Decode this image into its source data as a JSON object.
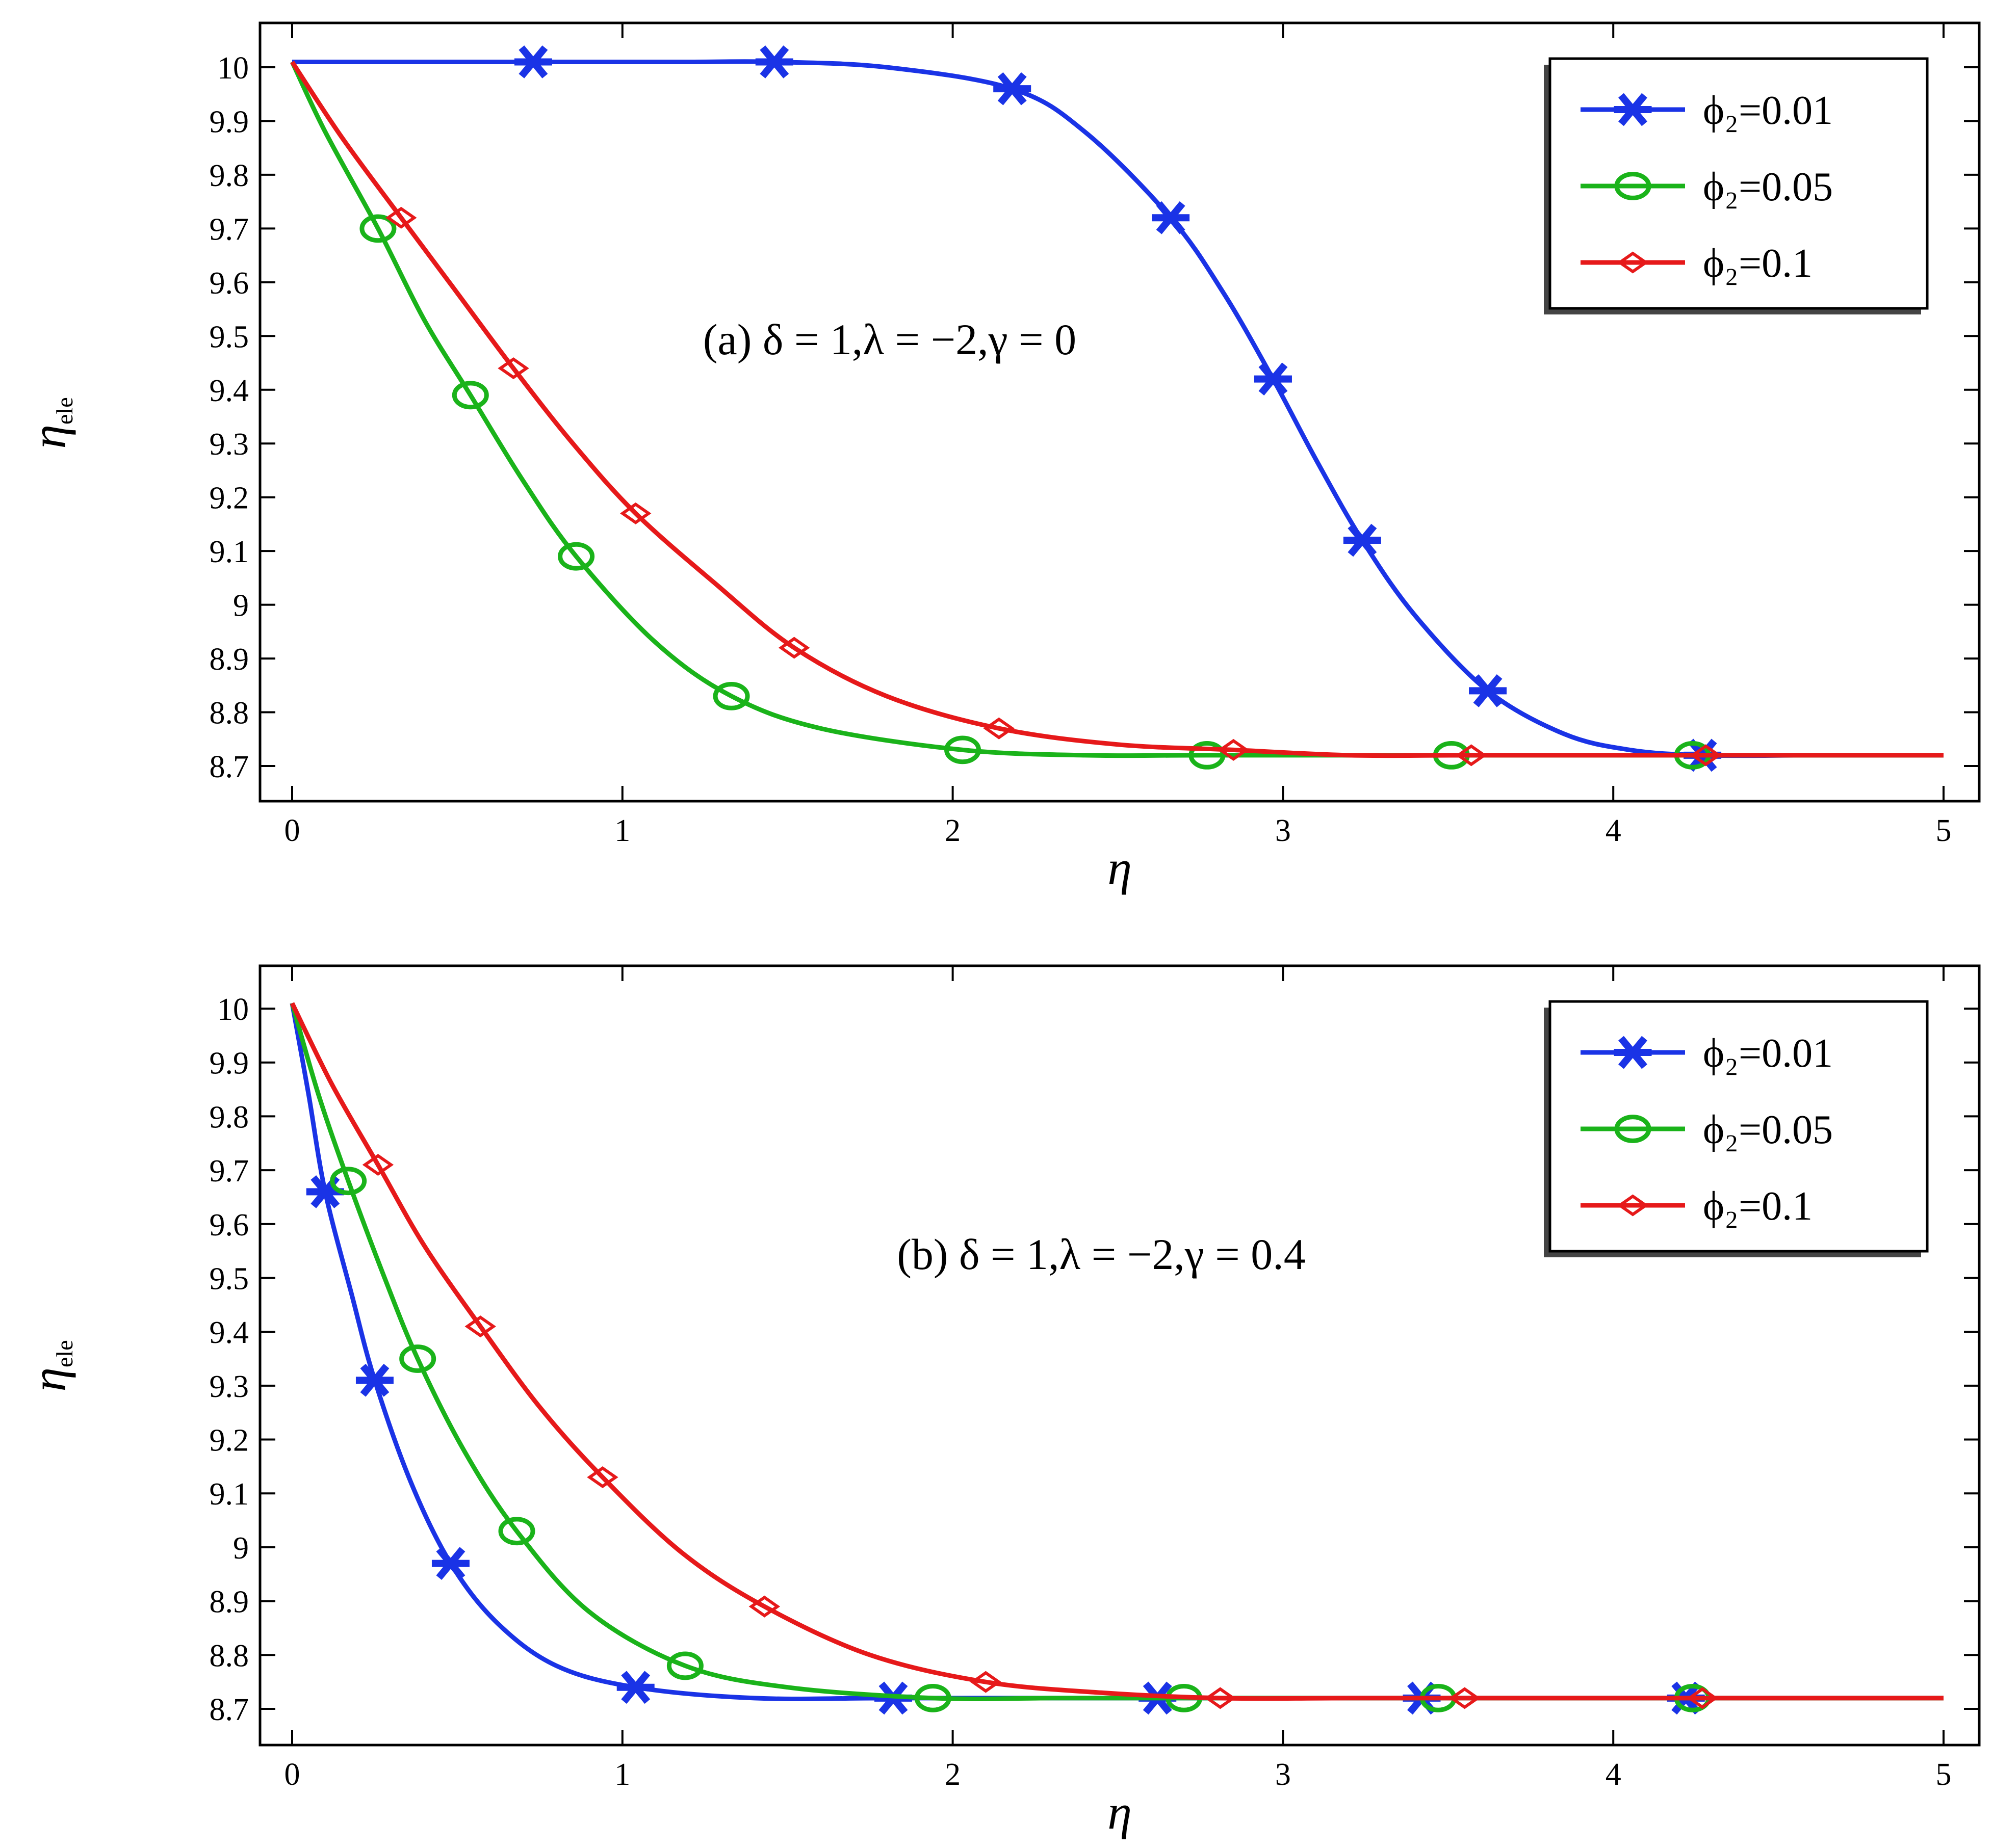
{
  "chart_data": [
    {
      "type": "line",
      "annotation": "(a) δ = 1,λ = −2,γ = 0",
      "xlabel": "η",
      "ylabel": "η",
      "ylabel_sub": "ele",
      "xlim": [
        0,
        5
      ],
      "ylim": [
        8.66,
        10.1
      ],
      "xticks": [
        0,
        1,
        2,
        3,
        4,
        5
      ],
      "yticks": [
        8.7,
        8.8,
        8.9,
        9,
        9.1,
        9.2,
        9.3,
        9.4,
        9.5,
        9.6,
        9.7,
        9.8,
        9.9,
        10
      ],
      "legend_position": "top-right",
      "grid": false,
      "series": [
        {
          "name": "ϕ₂=0.01",
          "color": "#1a33e6",
          "marker": "star",
          "x": [
            0,
            0.3,
            0.73,
            1.2,
            1.46,
            1.8,
            2.18,
            2.4,
            2.66,
            2.82,
            2.97,
            3.1,
            3.24,
            3.4,
            3.62,
            3.85,
            4.05,
            4.27,
            4.6,
            5
          ],
          "y": [
            10.01,
            10.01,
            10.01,
            10.01,
            10.01,
            10.0,
            9.96,
            9.88,
            9.72,
            9.58,
            9.42,
            9.27,
            9.12,
            8.98,
            8.84,
            8.76,
            8.73,
            8.72,
            8.72,
            8.72
          ],
          "markers_x": [
            0.73,
            1.46,
            2.18,
            2.66,
            2.97,
            3.24,
            3.62,
            4.27
          ],
          "markers_y": [
            10.01,
            10.01,
            9.96,
            9.72,
            9.42,
            9.12,
            8.84,
            8.72
          ]
        },
        {
          "name": "ϕ₂=0.05",
          "color": "#1ab31a",
          "marker": "circle",
          "x": [
            0,
            0.1,
            0.26,
            0.4,
            0.54,
            0.7,
            0.86,
            1.1,
            1.33,
            1.6,
            2.03,
            2.4,
            2.77,
            3.51,
            4.24,
            5
          ],
          "y": [
            10.01,
            9.88,
            9.7,
            9.53,
            9.39,
            9.23,
            9.09,
            8.93,
            8.83,
            8.77,
            8.73,
            8.72,
            8.72,
            8.72,
            8.72,
            8.72
          ],
          "markers_x": [
            0.26,
            0.54,
            0.86,
            1.33,
            2.03,
            2.77,
            3.51,
            4.24
          ],
          "markers_y": [
            9.7,
            9.39,
            9.09,
            8.83,
            8.73,
            8.72,
            8.72,
            8.72
          ]
        },
        {
          "name": "ϕ₂=0.1",
          "color": "#e6191a",
          "marker": "diamond",
          "x": [
            0,
            0.15,
            0.33,
            0.5,
            0.67,
            0.85,
            1.04,
            1.28,
            1.52,
            1.8,
            2.14,
            2.5,
            2.85,
            3.2,
            3.57,
            4.28,
            5
          ],
          "y": [
            10.01,
            9.87,
            9.72,
            9.58,
            9.44,
            9.3,
            9.17,
            9.04,
            8.92,
            8.83,
            8.77,
            8.74,
            8.73,
            8.72,
            8.72,
            8.72,
            8.72
          ],
          "markers_x": [
            0.33,
            0.67,
            1.04,
            1.52,
            2.14,
            2.85,
            3.57,
            4.28
          ],
          "markers_y": [
            9.72,
            9.44,
            9.17,
            8.92,
            8.77,
            8.73,
            8.72,
            8.72
          ]
        }
      ]
    },
    {
      "type": "line",
      "annotation": "(b) δ = 1,λ = −2,γ = 0.4",
      "xlabel": "η",
      "ylabel": "η",
      "ylabel_sub": "ele",
      "xlim": [
        0,
        5
      ],
      "ylim": [
        8.66,
        10.1
      ],
      "xticks": [
        0,
        1,
        2,
        3,
        4,
        5
      ],
      "yticks": [
        8.7,
        8.8,
        8.9,
        9,
        9.1,
        9.2,
        9.3,
        9.4,
        9.5,
        9.6,
        9.7,
        9.8,
        9.9,
        10
      ],
      "legend_position": "top-right",
      "grid": false,
      "series": [
        {
          "name": "ϕ₂=0.01",
          "color": "#1a33e6",
          "marker": "star",
          "x": [
            0,
            0.05,
            0.1,
            0.18,
            0.25,
            0.36,
            0.48,
            0.62,
            0.8,
            1.04,
            1.4,
            1.82,
            2.62,
            3.42,
            4.22,
            5
          ],
          "y": [
            10.01,
            9.84,
            9.66,
            9.47,
            9.31,
            9.12,
            8.97,
            8.86,
            8.78,
            8.74,
            8.72,
            8.72,
            8.72,
            8.72,
            8.72,
            8.72
          ],
          "markers_x": [
            0.1,
            0.25,
            0.48,
            1.04,
            1.82,
            2.62,
            3.42,
            4.22
          ],
          "markers_y": [
            9.66,
            9.31,
            8.97,
            8.74,
            8.72,
            8.72,
            8.72,
            8.72
          ]
        },
        {
          "name": "ϕ₂=0.05",
          "color": "#1ab31a",
          "marker": "circle",
          "x": [
            0,
            0.08,
            0.17,
            0.28,
            0.38,
            0.52,
            0.68,
            0.9,
            1.19,
            1.5,
            1.94,
            2.3,
            2.7,
            3.47,
            4.24,
            5
          ],
          "y": [
            10.01,
            9.84,
            9.68,
            9.5,
            9.35,
            9.18,
            9.03,
            8.88,
            8.78,
            8.74,
            8.72,
            8.72,
            8.72,
            8.72,
            8.72,
            8.72
          ],
          "markers_x": [
            0.17,
            0.38,
            0.68,
            1.19,
            1.94,
            2.7,
            3.47,
            4.24
          ],
          "markers_y": [
            9.68,
            9.35,
            9.03,
            8.78,
            8.72,
            8.72,
            8.72,
            8.72
          ]
        },
        {
          "name": "ϕ₂=0.1",
          "color": "#e6191a",
          "marker": "diamond",
          "x": [
            0,
            0.12,
            0.26,
            0.4,
            0.57,
            0.75,
            0.94,
            1.18,
            1.43,
            1.75,
            2.1,
            2.45,
            2.81,
            3.2,
            3.55,
            4.27,
            5
          ],
          "y": [
            10.01,
            9.86,
            9.71,
            9.56,
            9.41,
            9.26,
            9.13,
            8.99,
            8.89,
            8.8,
            8.75,
            8.73,
            8.72,
            8.72,
            8.72,
            8.72,
            8.72
          ],
          "markers_x": [
            0.26,
            0.57,
            0.94,
            1.43,
            2.1,
            2.81,
            3.55,
            4.27
          ],
          "markers_y": [
            9.71,
            9.41,
            9.13,
            8.89,
            8.75,
            8.72,
            8.72,
            8.72
          ]
        }
      ]
    }
  ]
}
